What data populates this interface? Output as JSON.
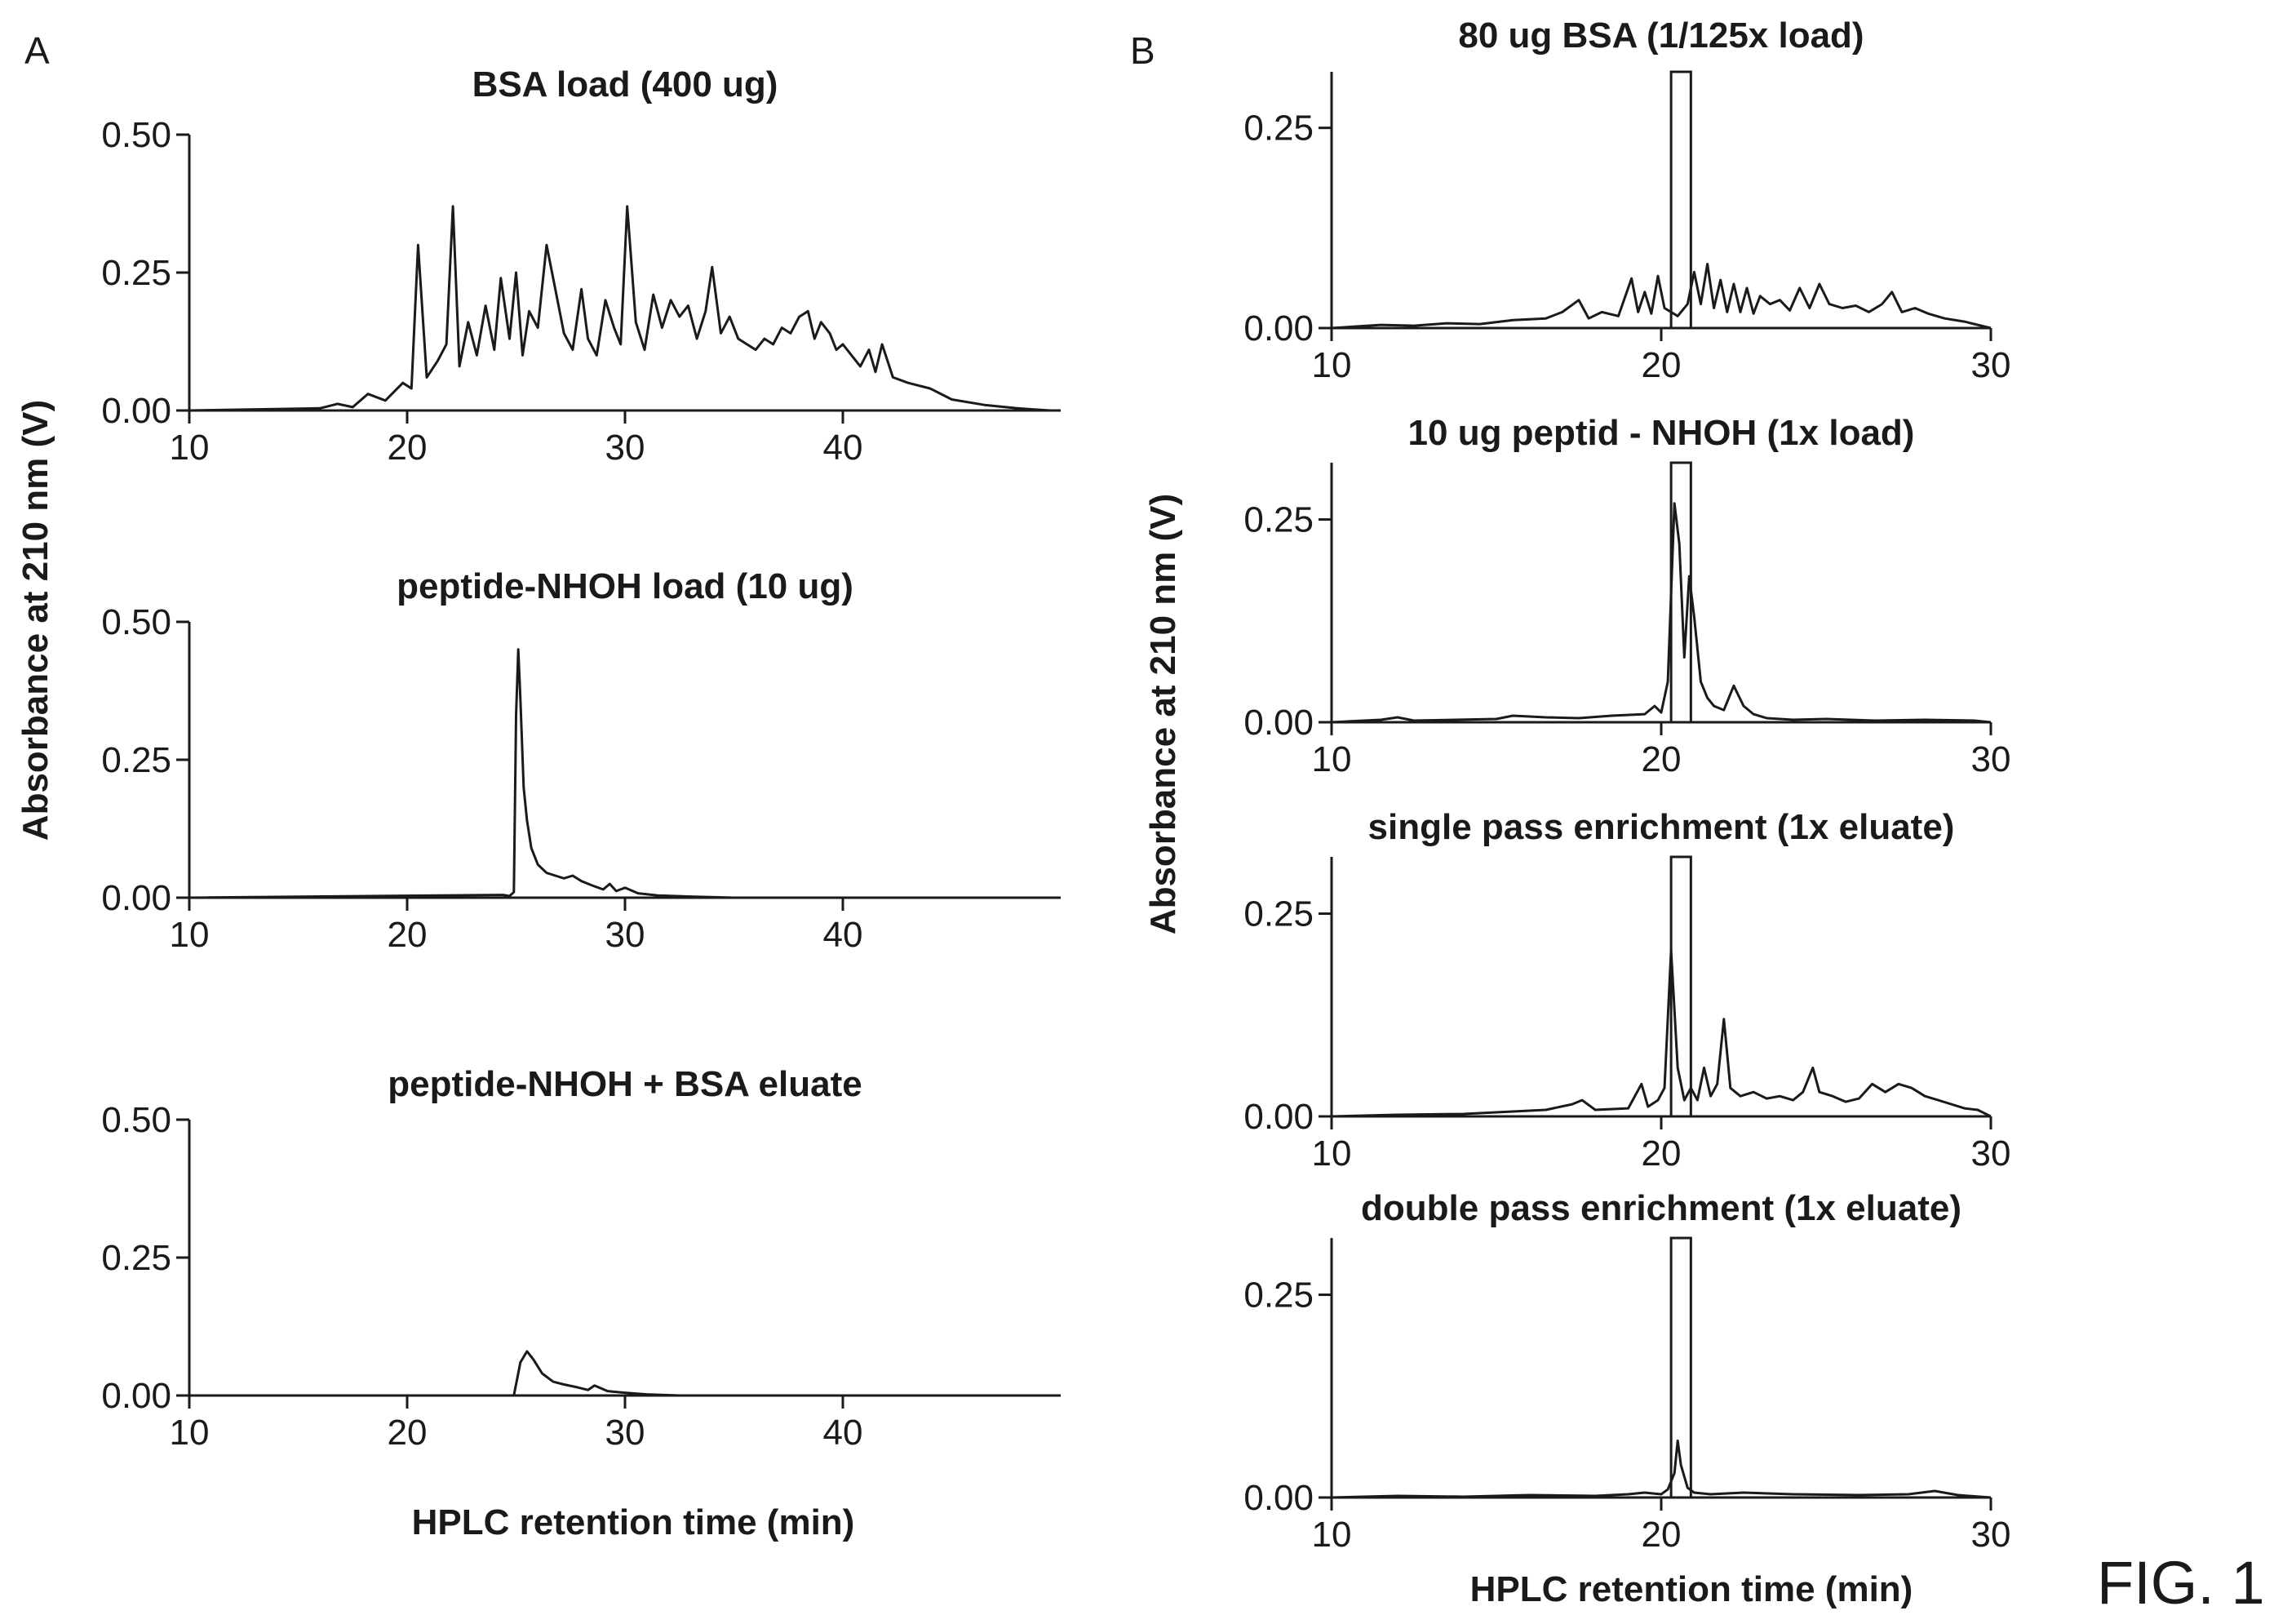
{
  "figure_label": "FIG. 1",
  "panel_labels": [
    "A",
    "B"
  ],
  "colors": {
    "ink": "#1a1a1a",
    "background": "#ffffff"
  },
  "panel_a": {
    "ylabel": "Absorbance at 210 nm (V)",
    "xlabel": "HPLC retention time (min)"
  },
  "panel_b": {
    "ylabel": "Absorbance at 210 nm (V)",
    "xlabel": "HPLC retention time (min)"
  },
  "chart_data": [
    {
      "type": "line",
      "panel": "A",
      "title": "BSA load (400 ug)",
      "xlim": [
        10,
        50
      ],
      "ylim": [
        0,
        0.5
      ],
      "xticks": [
        10,
        20,
        30,
        40
      ],
      "yticks": [
        0,
        0.25,
        0.5
      ],
      "xticklabels": [
        "10",
        "20",
        "30",
        "40"
      ],
      "yticklabels": [
        "0.00",
        "0.25",
        "0.50"
      ],
      "grid": false,
      "x": [
        10,
        16,
        16.8,
        17.5,
        18.2,
        19.0,
        19.8,
        20.2,
        20.5,
        20.9,
        21.4,
        21.8,
        22.1,
        22.4,
        22.8,
        23.2,
        23.6,
        24.0,
        24.3,
        24.7,
        25.0,
        25.3,
        25.6,
        26.0,
        26.4,
        26.8,
        27.2,
        27.6,
        28.0,
        28.3,
        28.7,
        29.1,
        29.5,
        29.8,
        30.1,
        30.5,
        30.9,
        31.3,
        31.7,
        32.1,
        32.5,
        32.9,
        33.3,
        33.7,
        34.0,
        34.4,
        34.8,
        35.2,
        35.6,
        36.0,
        36.4,
        36.8,
        37.2,
        37.6,
        38.0,
        38.4,
        38.7,
        39.0,
        39.4,
        39.7,
        40.0,
        40.4,
        40.8,
        41.2,
        41.5,
        41.8,
        42.3,
        43.0,
        44.0,
        45.0,
        46.5,
        48.0,
        49.5
      ],
      "y": [
        0,
        0.004,
        0.012,
        0.006,
        0.03,
        0.018,
        0.05,
        0.04,
        0.3,
        0.06,
        0.09,
        0.12,
        0.37,
        0.08,
        0.16,
        0.1,
        0.19,
        0.11,
        0.24,
        0.13,
        0.25,
        0.1,
        0.18,
        0.15,
        0.3,
        0.22,
        0.14,
        0.11,
        0.22,
        0.13,
        0.1,
        0.2,
        0.15,
        0.12,
        0.37,
        0.16,
        0.11,
        0.21,
        0.15,
        0.2,
        0.17,
        0.19,
        0.13,
        0.18,
        0.26,
        0.14,
        0.17,
        0.13,
        0.12,
        0.11,
        0.13,
        0.12,
        0.15,
        0.14,
        0.17,
        0.18,
        0.13,
        0.16,
        0.14,
        0.11,
        0.12,
        0.1,
        0.08,
        0.11,
        0.07,
        0.12,
        0.06,
        0.05,
        0.04,
        0.02,
        0.01,
        0.004,
        0.0
      ]
    },
    {
      "type": "line",
      "panel": "A",
      "title": "peptide-NHOH load (10 ug)",
      "xlim": [
        10,
        50
      ],
      "ylim": [
        0,
        0.5
      ],
      "xticks": [
        10,
        20,
        30,
        40
      ],
      "yticks": [
        0,
        0.25,
        0.5
      ],
      "xticklabels": [
        "10",
        "20",
        "30",
        "40"
      ],
      "yticklabels": [
        "0.00",
        "0.25",
        "0.50"
      ],
      "grid": false,
      "x": [
        10,
        24.4,
        24.7,
        24.9,
        25.0,
        25.1,
        25.2,
        25.35,
        25.5,
        25.7,
        26.0,
        26.4,
        26.8,
        27.2,
        27.6,
        28.0,
        28.5,
        29.0,
        29.3,
        29.6,
        30.0,
        30.6,
        31.5,
        33.0,
        35.0,
        40.0,
        50.0
      ],
      "y": [
        0,
        0.005,
        0.003,
        0.01,
        0.33,
        0.45,
        0.36,
        0.2,
        0.14,
        0.09,
        0.06,
        0.045,
        0.04,
        0.035,
        0.04,
        0.03,
        0.022,
        0.015,
        0.025,
        0.012,
        0.018,
        0.008,
        0.004,
        0.002,
        0,
        0,
        0
      ]
    },
    {
      "type": "line",
      "panel": "A",
      "title": "peptide-NHOH + BSA eluate",
      "xlim": [
        10,
        50
      ],
      "ylim": [
        0,
        0.5
      ],
      "xticks": [
        10,
        20,
        30,
        40
      ],
      "yticks": [
        0,
        0.25,
        0.5
      ],
      "xticklabels": [
        "10",
        "20",
        "30",
        "40"
      ],
      "yticklabels": [
        "0.00",
        "0.25",
        "0.50"
      ],
      "grid": false,
      "x": [
        10,
        24.9,
        25.2,
        25.5,
        25.8,
        26.2,
        26.7,
        27.2,
        27.8,
        28.3,
        28.6,
        29.2,
        30.0,
        31.0,
        32.5,
        35.0,
        50.0
      ],
      "y": [
        0,
        0.0,
        0.06,
        0.08,
        0.065,
        0.04,
        0.025,
        0.02,
        0.015,
        0.01,
        0.018,
        0.008,
        0.005,
        0.002,
        0.0,
        0.0,
        0.0
      ]
    },
    {
      "type": "line",
      "panel": "B",
      "title": "80 ug BSA (1/125x load)",
      "xlim": [
        10,
        30
      ],
      "ylim": [
        0,
        0.32
      ],
      "xticks": [
        10,
        20,
        30
      ],
      "yticks": [
        0,
        0.25
      ],
      "xticklabels": [
        "10",
        "20",
        "30"
      ],
      "yticklabels": [
        "0.00",
        "0.25"
      ],
      "grid": false,
      "highlight_window": [
        20.3,
        20.9
      ],
      "x": [
        10,
        11.5,
        12.5,
        13.5,
        14.5,
        15.5,
        16.5,
        17.0,
        17.5,
        17.8,
        18.2,
        18.7,
        19.1,
        19.3,
        19.5,
        19.7,
        19.9,
        20.1,
        20.3,
        20.5,
        20.8,
        21.0,
        21.2,
        21.4,
        21.6,
        21.8,
        22.0,
        22.2,
        22.4,
        22.6,
        22.8,
        23.0,
        23.3,
        23.6,
        23.9,
        24.2,
        24.5,
        24.8,
        25.1,
        25.5,
        25.9,
        26.3,
        26.7,
        27.0,
        27.3,
        27.7,
        28.1,
        28.6,
        29.2,
        30.0
      ],
      "y": [
        0,
        0.004,
        0.003,
        0.006,
        0.005,
        0.01,
        0.012,
        0.02,
        0.035,
        0.012,
        0.02,
        0.015,
        0.062,
        0.02,
        0.045,
        0.018,
        0.065,
        0.025,
        0.02,
        0.015,
        0.03,
        0.07,
        0.03,
        0.08,
        0.025,
        0.06,
        0.02,
        0.055,
        0.02,
        0.05,
        0.018,
        0.04,
        0.03,
        0.035,
        0.022,
        0.05,
        0.025,
        0.055,
        0.03,
        0.025,
        0.028,
        0.02,
        0.03,
        0.045,
        0.02,
        0.025,
        0.018,
        0.012,
        0.008,
        0.0
      ]
    },
    {
      "type": "line",
      "panel": "B",
      "title": "10 ug peptid - NHOH (1x load)",
      "xlim": [
        10,
        30
      ],
      "ylim": [
        0,
        0.32
      ],
      "xticks": [
        10,
        20,
        30
      ],
      "yticks": [
        0,
        0.25
      ],
      "xticklabels": [
        "10",
        "20",
        "30"
      ],
      "yticklabels": [
        "0.00",
        "0.25"
      ],
      "grid": false,
      "highlight_window": [
        20.3,
        20.9
      ],
      "x": [
        10,
        11.5,
        12.0,
        12.5,
        15.0,
        15.5,
        16.5,
        17.5,
        18.5,
        19.5,
        19.8,
        20.0,
        20.2,
        20.4,
        20.55,
        20.7,
        20.85,
        21.0,
        21.2,
        21.4,
        21.6,
        21.9,
        22.2,
        22.5,
        22.8,
        23.2,
        24.0,
        25.0,
        26.5,
        28.0,
        29.5,
        30.0
      ],
      "y": [
        0,
        0.003,
        0.006,
        0.002,
        0.004,
        0.008,
        0.006,
        0.005,
        0.008,
        0.01,
        0.02,
        0.012,
        0.05,
        0.27,
        0.22,
        0.08,
        0.18,
        0.13,
        0.05,
        0.03,
        0.02,
        0.015,
        0.045,
        0.02,
        0.01,
        0.005,
        0.003,
        0.004,
        0.002,
        0.003,
        0.002,
        0.0
      ]
    },
    {
      "type": "line",
      "panel": "B",
      "title": "single pass enrichment (1x eluate)",
      "xlim": [
        10,
        30
      ],
      "ylim": [
        0,
        0.32
      ],
      "xticks": [
        10,
        20,
        30
      ],
      "yticks": [
        0,
        0.25
      ],
      "xticklabels": [
        "10",
        "20",
        "30"
      ],
      "yticklabels": [
        "0.00",
        "0.25"
      ],
      "grid": false,
      "highlight_window": [
        20.3,
        20.9
      ],
      "x": [
        10,
        12.0,
        14.0,
        15.5,
        16.5,
        17.3,
        17.6,
        18.0,
        19.0,
        19.4,
        19.6,
        19.9,
        20.1,
        20.3,
        20.5,
        20.7,
        20.9,
        21.1,
        21.3,
        21.5,
        21.7,
        21.9,
        22.1,
        22.4,
        22.8,
        23.2,
        23.6,
        24.0,
        24.3,
        24.6,
        24.8,
        25.2,
        25.6,
        26.0,
        26.4,
        26.8,
        27.2,
        27.6,
        28.0,
        28.4,
        28.8,
        29.2,
        29.6,
        30.0
      ],
      "y": [
        0,
        0.002,
        0.003,
        0.006,
        0.008,
        0.015,
        0.02,
        0.008,
        0.01,
        0.04,
        0.012,
        0.02,
        0.035,
        0.205,
        0.06,
        0.02,
        0.035,
        0.02,
        0.06,
        0.025,
        0.04,
        0.12,
        0.035,
        0.025,
        0.03,
        0.022,
        0.025,
        0.02,
        0.03,
        0.06,
        0.03,
        0.025,
        0.018,
        0.022,
        0.04,
        0.03,
        0.04,
        0.035,
        0.025,
        0.02,
        0.015,
        0.01,
        0.008,
        0.0
      ]
    },
    {
      "type": "line",
      "panel": "B",
      "title": "double pass enrichment (1x eluate)",
      "xlim": [
        10,
        30
      ],
      "ylim": [
        0,
        0.32
      ],
      "xticks": [
        10,
        20,
        30
      ],
      "yticks": [
        0,
        0.25
      ],
      "xticklabels": [
        "10",
        "20",
        "30"
      ],
      "yticklabels": [
        "0.00",
        "0.25"
      ],
      "grid": false,
      "highlight_window": [
        20.3,
        20.9
      ],
      "x": [
        10,
        12.0,
        14.0,
        16.0,
        18.0,
        19.0,
        19.5,
        20.0,
        20.2,
        20.4,
        20.5,
        20.6,
        20.8,
        21.0,
        21.5,
        22.5,
        24.0,
        26.0,
        27.5,
        28.3,
        29.0,
        30.0
      ],
      "y": [
        0,
        0.002,
        0.001,
        0.003,
        0.002,
        0.004,
        0.006,
        0.004,
        0.01,
        0.03,
        0.07,
        0.04,
        0.012,
        0.006,
        0.004,
        0.006,
        0.004,
        0.003,
        0.004,
        0.008,
        0.003,
        0.0
      ]
    }
  ]
}
